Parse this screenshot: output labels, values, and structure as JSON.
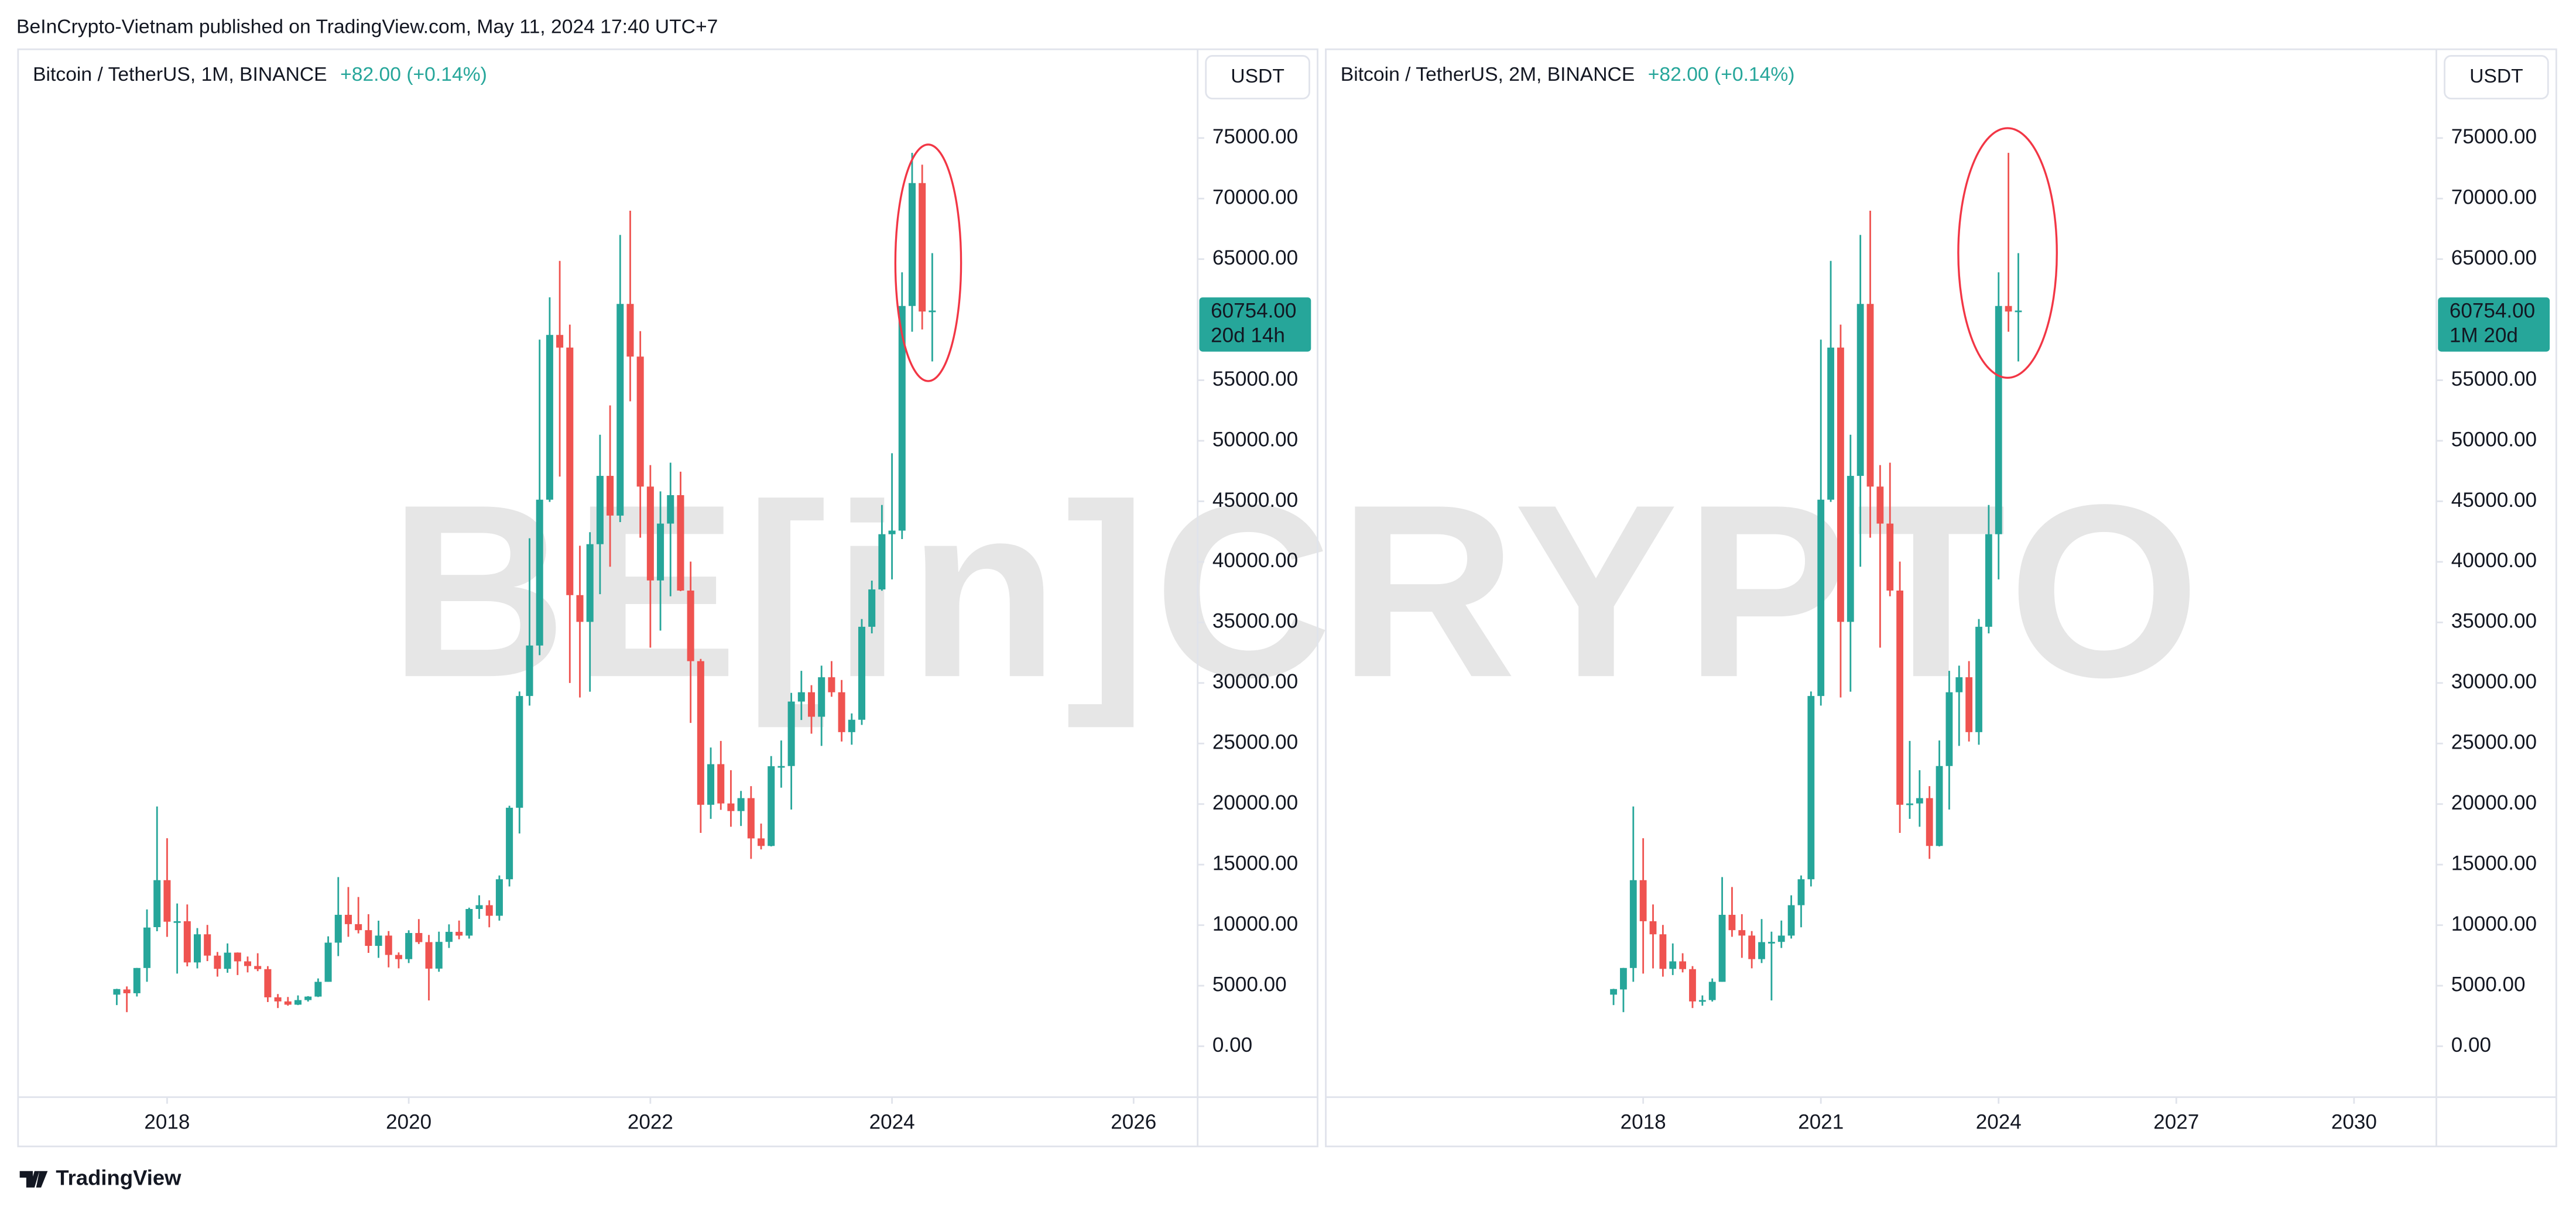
{
  "header": "BeInCrypto-Vietnam published on TradingView.com, May 11, 2024 17:40 UTC+7",
  "footer": "TradingView",
  "watermark": "BE[in]CRYPTO",
  "chart_data": [
    {
      "type": "candlestick",
      "title": "Bitcoin / TetherUS, 1M, BINANCE",
      "change": "+82.00 (+0.14%)",
      "currency": "USDT",
      "countdown": "20d 14h",
      "last_price": {
        "value": 60754,
        "label": "60754.00"
      },
      "up_color": "#26a69a",
      "down_color": "#ef5350",
      "x": [
        "2017-08",
        "2017-09",
        "2017-10",
        "2017-11",
        "2017-12",
        "2018-01",
        "2018-02",
        "2018-03",
        "2018-04",
        "2018-05",
        "2018-06",
        "2018-07",
        "2018-08",
        "2018-09",
        "2018-10",
        "2018-11",
        "2018-12",
        "2019-01",
        "2019-02",
        "2019-03",
        "2019-04",
        "2019-05",
        "2019-06",
        "2019-07",
        "2019-08",
        "2019-09",
        "2019-10",
        "2019-11",
        "2019-12",
        "2020-01",
        "2020-02",
        "2020-03",
        "2020-04",
        "2020-05",
        "2020-06",
        "2020-07",
        "2020-08",
        "2020-09",
        "2020-10",
        "2020-11",
        "2020-12",
        "2021-01",
        "2021-02",
        "2021-03",
        "2021-04",
        "2021-05",
        "2021-06",
        "2021-07",
        "2021-08",
        "2021-09",
        "2021-10",
        "2021-11",
        "2021-12",
        "2022-01",
        "2022-02",
        "2022-03",
        "2022-04",
        "2022-05",
        "2022-06",
        "2022-07",
        "2022-08",
        "2022-09",
        "2022-10",
        "2022-11",
        "2022-12",
        "2023-01",
        "2023-02",
        "2023-03",
        "2023-04",
        "2023-05",
        "2023-06",
        "2023-07",
        "2023-08",
        "2023-09",
        "2023-10",
        "2023-11",
        "2023-12",
        "2024-01",
        "2024-02",
        "2024-03",
        "2024-04",
        "2024-05"
      ],
      "open": [
        4261,
        4690,
        4379,
        6463,
        9837,
        13716,
        10285,
        10325,
        6922,
        9246,
        7485,
        6391,
        7735,
        7011,
        6626,
        6369,
        4041,
        3701,
        3434,
        3814,
        4102,
        5321,
        8555,
        10854,
        10085,
        9588,
        8289,
        9140,
        7540,
        7195,
        9351,
        8600,
        6412,
        8620,
        9448,
        9138,
        11335,
        11649,
        10776,
        13791,
        19695,
        28923,
        33092,
        45134,
        58739,
        57697,
        37254,
        35045,
        41461,
        47100,
        43820,
        61300,
        56950,
        46216,
        38466,
        43160,
        45510,
        37630,
        31801,
        19942,
        23296,
        20050,
        19423,
        20490,
        17165,
        16541,
        23125,
        23141,
        28465,
        29233,
        27210,
        30472,
        29232,
        25940,
        26962,
        34639,
        37723,
        42283,
        42580,
        61131,
        71280,
        60672
      ],
      "high": [
        4745,
        4939,
        6470,
        11300,
        19798,
        17176,
        11786,
        11710,
        9759,
        10020,
        7786,
        8491,
        7750,
        7410,
        7680,
        6615,
        4312,
        4069,
        4198,
        4140,
        5600,
        9074,
        13970,
        13147,
        12325,
        10905,
        10370,
        9513,
        7750,
        9578,
        10500,
        9188,
        9460,
        10067,
        10380,
        11444,
        12468,
        12050,
        14100,
        19863,
        29300,
        41950,
        58352,
        61844,
        64854,
        59592,
        41330,
        42448,
        50500,
        52920,
        67000,
        69000,
        59053,
        47990,
        45821,
        48189,
        47444,
        40023,
        31986,
        24668,
        25211,
        22799,
        21085,
        21480,
        18387,
        23960,
        25250,
        29184,
        31000,
        29820,
        31431,
        31804,
        30244,
        27483,
        35280,
        38450,
        44700,
        48969,
        63913,
        73777,
        72797,
        65494
      ],
      "low": [
        3400,
        2817,
        4110,
        5325,
        9500,
        9035,
        6000,
        6600,
        6430,
        7032,
        5750,
        6070,
        5880,
        6100,
        6200,
        3652,
        3156,
        3349,
        3400,
        3690,
        4067,
        5316,
        7444,
        9040,
        9320,
        7710,
        7300,
        6515,
        6435,
        6871,
        8445,
        3782,
        6150,
        8117,
        8833,
        8893,
        10518,
        9825,
        10375,
        13195,
        17572,
        28130,
        32296,
        44950,
        47044,
        30000,
        28805,
        29278,
        37332,
        39600,
        43283,
        53256,
        42000,
        32917,
        34322,
        37155,
        37578,
        26700,
        17622,
        18781,
        19520,
        18125,
        18190,
        15476,
        16256,
        16499,
        21351,
        19549,
        26942,
        25811,
        24800,
        28861,
        25166,
        24901,
        26538,
        34097,
        37615,
        38555,
        41884,
        59005,
        59191,
        56552
      ],
      "close": [
        4724,
        4378,
        6463,
        9803,
        13716,
        10285,
        10326,
        6923,
        9246,
        7485,
        6391,
        7730,
        7011,
        6626,
        6371,
        4041,
        3702,
        3434,
        3813,
        4103,
        5320,
        8555,
        10855,
        10085,
        9588,
        8289,
        9140,
        7541,
        7195,
        9352,
        8600,
        6410,
        8620,
        9448,
        9138,
        11335,
        11649,
        10776,
        13791,
        19695,
        28923,
        33092,
        45135,
        58740,
        57694,
        37253,
        35045,
        41461,
        47100,
        43824,
        61299,
        56950,
        46216,
        38466,
        43160,
        45510,
        37630,
        31801,
        19942,
        23293,
        20050,
        19423,
        20490,
        17164,
        16542,
        23125,
        23141,
        28465,
        29233,
        27210,
        30472,
        29232,
        25940,
        26962,
        34639,
        37723,
        42284,
        42580,
        61130,
        71280,
        60672,
        60754
      ],
      "xlim": [
        2016.78,
        2026.53
      ],
      "xticks": [
        2018,
        2020,
        2022,
        2024,
        2026
      ],
      "ylim": [
        -4204,
        82327
      ],
      "yticks": [
        {
          "value": 0,
          "label": "0.00"
        },
        {
          "value": 5000,
          "label": "5000.00"
        },
        {
          "value": 10000,
          "label": "10000.00"
        },
        {
          "value": 15000,
          "label": "15000.00"
        },
        {
          "value": 20000,
          "label": "20000.00"
        },
        {
          "value": 25000,
          "label": "25000.00"
        },
        {
          "value": 30000,
          "label": "30000.00"
        },
        {
          "value": 35000,
          "label": "35000.00"
        },
        {
          "value": 40000,
          "label": "40000.00"
        },
        {
          "value": 45000,
          "label": "45000.00"
        },
        {
          "value": 50000,
          "label": "50000.00"
        },
        {
          "value": 55000,
          "label": "55000.00"
        },
        {
          "value": 65000,
          "label": "65000.00"
        },
        {
          "value": 70000,
          "label": "70000.00"
        },
        {
          "value": 75000,
          "label": "75000.00"
        }
      ]
    },
    {
      "type": "candlestick",
      "title": "Bitcoin / TetherUS, 2M, BINANCE",
      "change": "+82.00 (+0.14%)",
      "currency": "USDT",
      "countdown": "1M 20d",
      "last_price": {
        "value": 60754,
        "label": "60754.00"
      },
      "up_color": "#26a69a",
      "down_color": "#ef5350",
      "x": [
        "2017-07",
        "2017-09",
        "2017-11",
        "2018-01",
        "2018-03",
        "2018-05",
        "2018-07",
        "2018-09",
        "2018-11",
        "2019-01",
        "2019-03",
        "2019-05",
        "2019-07",
        "2019-09",
        "2019-11",
        "2020-01",
        "2020-03",
        "2020-05",
        "2020-07",
        "2020-09",
        "2020-11",
        "2021-01",
        "2021-03",
        "2021-05",
        "2021-07",
        "2021-09",
        "2021-11",
        "2022-01",
        "2022-03",
        "2022-05",
        "2022-07",
        "2022-09",
        "2022-11",
        "2023-01",
        "2023-03",
        "2023-05",
        "2023-07",
        "2023-09",
        "2023-11",
        "2024-01",
        "2024-03",
        "2024-05"
      ],
      "open": [
        4261,
        4690,
        6463,
        13716,
        10325,
        9246,
        6391,
        7011,
        6369,
        3701,
        3814,
        5321,
        10854,
        9588,
        9140,
        7195,
        8600,
        8620,
        9138,
        11649,
        13791,
        28923,
        45134,
        57697,
        35045,
        47100,
        61300,
        46216,
        43160,
        37630,
        19942,
        20050,
        20490,
        16541,
        23141,
        29233,
        30472,
        25940,
        34639,
        42283,
        61131,
        60672
      ],
      "high": [
        4745,
        6470,
        19798,
        17176,
        11710,
        10020,
        8491,
        7680,
        6615,
        4198,
        5600,
        13970,
        13147,
        10905,
        9513,
        10500,
        9460,
        10380,
        12468,
        14100,
        29300,
        58352,
        64854,
        59592,
        50500,
        67000,
        69000,
        47990,
        48189,
        40023,
        25211,
        22799,
        21480,
        25250,
        31000,
        31431,
        31804,
        35280,
        44700,
        63913,
        73777,
        65494
      ],
      "low": [
        3400,
        2817,
        5325,
        6000,
        6430,
        5750,
        5880,
        6100,
        3156,
        3349,
        3690,
        5316,
        9040,
        7300,
        6435,
        6871,
        3782,
        8117,
        8893,
        9825,
        13195,
        28130,
        44950,
        28805,
        29278,
        39600,
        42000,
        32917,
        37155,
        17622,
        18781,
        18125,
        15476,
        16499,
        19549,
        24800,
        25166,
        24901,
        34097,
        38555,
        59005,
        56552
      ],
      "close": [
        4724,
        6463,
        13716,
        10326,
        9246,
        6391,
        7011,
        6371,
        3702,
        3813,
        5320,
        10855,
        9588,
        9140,
        7195,
        8600,
        8620,
        9138,
        11649,
        13791,
        28923,
        45135,
        57694,
        35045,
        47100,
        61299,
        46216,
        43160,
        37630,
        19942,
        20050,
        20490,
        16542,
        23141,
        29233,
        30472,
        25940,
        34639,
        42284,
        61130,
        60672,
        60754
      ],
      "xlim": [
        2012.67,
        2031.39
      ],
      "xticks": [
        2018,
        2021,
        2024,
        2027,
        2030
      ],
      "ylim": [
        -4204,
        82327
      ],
      "yticks": [
        {
          "value": 0,
          "label": "0.00"
        },
        {
          "value": 5000,
          "label": "5000.00"
        },
        {
          "value": 10000,
          "label": "10000.00"
        },
        {
          "value": 15000,
          "label": "15000.00"
        },
        {
          "value": 20000,
          "label": "20000.00"
        },
        {
          "value": 25000,
          "label": "25000.00"
        },
        {
          "value": 30000,
          "label": "30000.00"
        },
        {
          "value": 35000,
          "label": "35000.00"
        },
        {
          "value": 40000,
          "label": "40000.00"
        },
        {
          "value": 45000,
          "label": "45000.00"
        },
        {
          "value": 50000,
          "label": "50000.00"
        },
        {
          "value": 55000,
          "label": "55000.00"
        },
        {
          "value": 65000,
          "label": "65000.00"
        },
        {
          "value": 70000,
          "label": "70000.00"
        },
        {
          "value": 75000,
          "label": "75000.00"
        }
      ]
    }
  ]
}
